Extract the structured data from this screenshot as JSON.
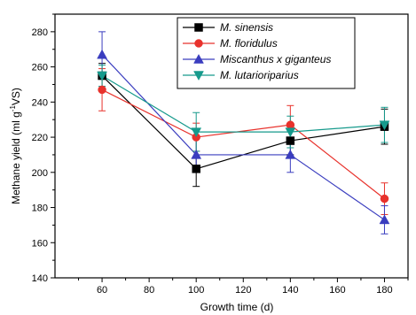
{
  "chart_data": {
    "type": "line",
    "xlabel": "Growth time (d)",
    "ylabel_prefix": "Methane yield (ml g",
    "ylabel_sup": "-1",
    "ylabel_suffix": "VS)",
    "xlim": [
      40,
      190
    ],
    "ylim": [
      140,
      290
    ],
    "xticks": [
      60,
      80,
      100,
      120,
      140,
      160,
      180
    ],
    "yticks": [
      140,
      160,
      180,
      200,
      220,
      240,
      260,
      280
    ],
    "x": [
      60,
      100,
      140,
      180
    ],
    "legend_position": "top-right",
    "series": [
      {
        "name": "M. sinensis",
        "color": "#000000",
        "marker": "square",
        "values": [
          255,
          202,
          218,
          226
        ],
        "errors": [
          7,
          10,
          8,
          10
        ]
      },
      {
        "name": "M. floridulus",
        "color": "#e8322c",
        "marker": "circle",
        "values": [
          247,
          220,
          227,
          185
        ],
        "errors": [
          12,
          8,
          11,
          9
        ]
      },
      {
        "name": "Miscanthus x giganteus",
        "color": "#3a3dbf",
        "marker": "triangle-up",
        "values": [
          267,
          210,
          210,
          173
        ],
        "errors": [
          13,
          10,
          10,
          8
        ]
      },
      {
        "name": "M. lutarioriparius",
        "color": "#169a8c",
        "marker": "triangle-down",
        "values": [
          255,
          223,
          223,
          227
        ],
        "errors": [
          6,
          11,
          9,
          10
        ]
      }
    ]
  }
}
